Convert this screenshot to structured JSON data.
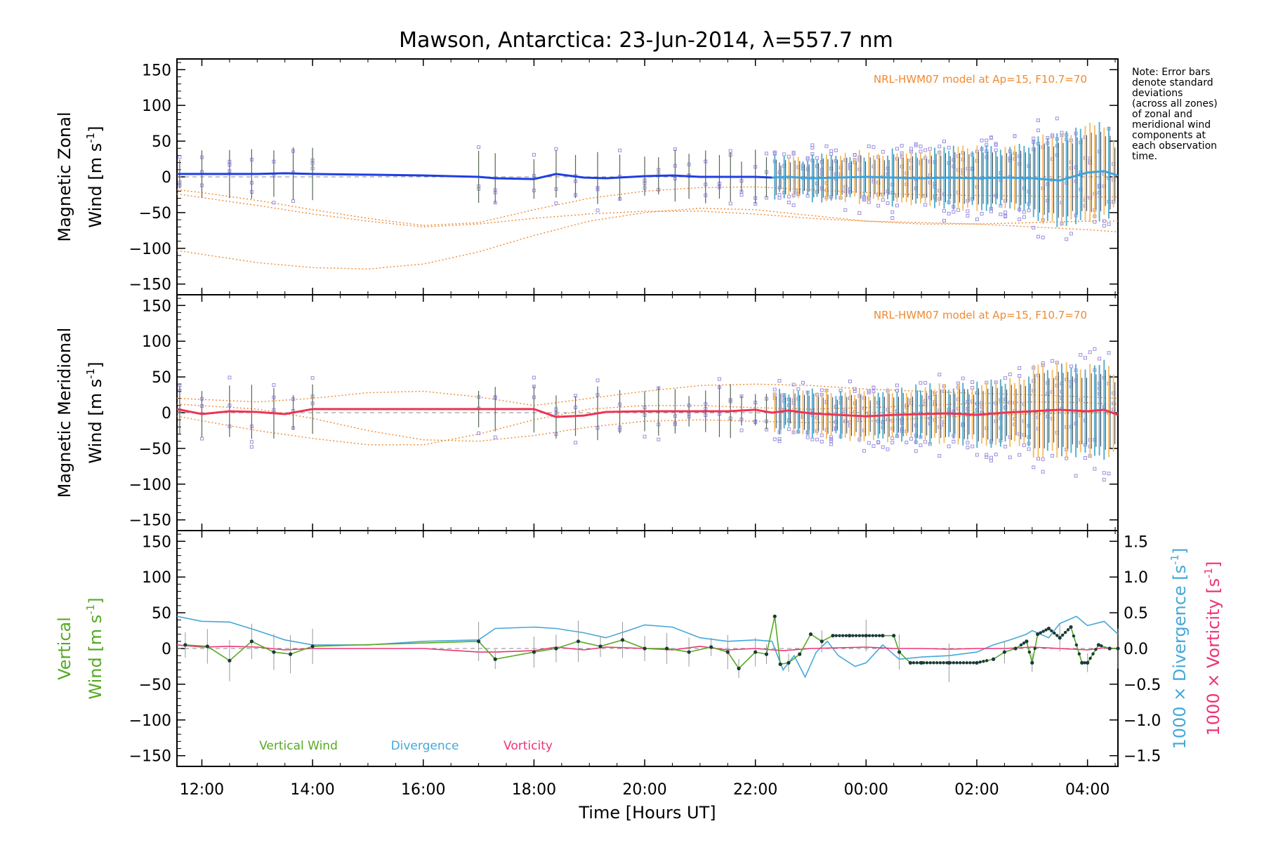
{
  "title": "Mawson, Antarctica: 23-Jun-2014, λ=557.7 nm",
  "note": [
    "Note: Error bars",
    "denote standard",
    "deviations",
    "(across all zones)",
    "of zonal and",
    "meridional wind",
    "components at",
    "each observation",
    "time."
  ],
  "x_axis": {
    "label": "Time [Hours UT]",
    "range_hours_since_midnight_23jun": [
      11.55,
      28.55
    ],
    "ticks": [
      {
        "value": 12,
        "label": "12:00"
      },
      {
        "value": 14,
        "label": "14:00"
      },
      {
        "value": 16,
        "label": "16:00"
      },
      {
        "value": 18,
        "label": "18:00"
      },
      {
        "value": 20,
        "label": "20:00"
      },
      {
        "value": 22,
        "label": "22:00"
      },
      {
        "value": 24,
        "label": "00:00"
      },
      {
        "value": 26,
        "label": "02:00"
      },
      {
        "value": 28,
        "label": "04:00"
      }
    ]
  },
  "colors": {
    "zonal": "#1f3fe0",
    "zonal_late": "#39a4e0",
    "meridional": "#ee3355",
    "model": "#f08a30",
    "scatter": "#9a8fe0",
    "vertical": "#55aa22",
    "divergence": "#45a8d8",
    "vorticity": "#ee3377",
    "errorbar": "#556655"
  },
  "chart_data": [
    {
      "type": "line",
      "panel": "zonal",
      "ylabel_line1": "Magnetic Zonal",
      "ylabel_line2": "Wind [m s",
      "ylabel_sup": "-1",
      "ylabel_tail": "]",
      "ylim": [
        -165,
        165
      ],
      "yticks": [
        -150,
        -100,
        -50,
        0,
        50,
        100,
        150
      ],
      "model_label": "NRL-HWM07 model at Ap=15, F10.7=70",
      "series": [
        {
          "name": "zonal wind",
          "x": [
            11.55,
            12.0,
            12.5,
            13.0,
            13.5,
            14.0,
            15.0,
            16.0,
            17.0,
            17.3,
            18.0,
            18.4,
            18.9,
            19.3,
            20.0,
            20.5,
            21.0,
            21.5,
            22.0,
            22.3
          ],
          "y": [
            4,
            4,
            4,
            4,
            5,
            4,
            3,
            2,
            0,
            -2,
            -3,
            4,
            -1,
            -2,
            1,
            2,
            0,
            0,
            0,
            -1
          ]
        },
        {
          "name": "zonal wind (late)",
          "x": [
            22.3,
            22.6,
            23.0,
            23.5,
            24.0,
            24.5,
            25.0,
            25.5,
            26.0,
            26.5,
            27.0,
            27.5,
            28.0,
            28.3,
            28.55
          ],
          "y": [
            -1,
            0,
            -2,
            -1,
            0,
            -1,
            -2,
            -1,
            -2,
            -1,
            -2,
            -5,
            6,
            8,
            2
          ]
        },
        {
          "name": "model 1",
          "x": [
            11.55,
            13,
            14,
            15,
            16,
            17,
            18,
            19,
            20,
            21,
            22,
            23,
            24,
            25,
            26,
            27,
            28,
            28.55
          ],
          "y": [
            -24,
            -40,
            -52,
            -62,
            -70,
            -66,
            -58,
            -52,
            -48,
            -48,
            -52,
            -58,
            -62,
            -64,
            -66,
            -70,
            -74,
            -77
          ]
        },
        {
          "name": "model 2",
          "x": [
            11.55,
            13,
            14,
            15,
            16,
            17,
            18,
            19,
            20,
            21,
            22,
            23,
            24,
            25,
            26,
            27,
            28,
            28.55
          ],
          "y": [
            -103,
            -120,
            -127,
            -129,
            -122,
            -105,
            -82,
            -62,
            -50,
            -44,
            -46,
            -54,
            -62,
            -66,
            -66,
            -64,
            -62,
            -62
          ]
        },
        {
          "name": "model 3",
          "x": [
            11.55,
            12,
            13,
            14,
            15,
            16,
            17,
            18,
            19,
            20,
            21,
            22,
            23,
            24,
            25,
            26,
            27,
            28,
            28.55
          ],
          "y": [
            -18,
            -22,
            -33,
            -46,
            -58,
            -68,
            -64,
            -46,
            -30,
            -20,
            -15,
            -14,
            -18,
            -22,
            -25,
            -26,
            -27,
            -28,
            -28
          ]
        }
      ]
    },
    {
      "type": "line",
      "panel": "meridional",
      "ylabel_line1": "Magnetic Meridional",
      "ylabel_line2": "Wind [m s",
      "ylabel_sup": "-1",
      "ylabel_tail": "]",
      "ylim": [
        -165,
        165
      ],
      "yticks": [
        -150,
        -100,
        -50,
        0,
        50,
        100,
        150
      ],
      "model_label": "NRL-HWM07 model at Ap=15, F10.7=70",
      "series": [
        {
          "name": "meridional wind",
          "x": [
            11.55,
            12.0,
            12.5,
            13.0,
            13.5,
            14.0,
            15.0,
            16.0,
            17.0,
            17.3,
            18.0,
            18.4,
            18.9,
            19.3,
            20.0,
            20.5,
            21.0,
            21.5,
            22.0,
            22.3,
            22.6,
            23.0,
            23.5,
            24.0,
            24.5,
            25.0,
            25.5,
            26.0,
            26.5,
            27.0,
            27.5,
            28.0,
            28.3,
            28.55
          ],
          "y": [
            5,
            -2,
            2,
            1,
            -2,
            5,
            5,
            5,
            5,
            5,
            5,
            -6,
            -4,
            1,
            2,
            2,
            2,
            2,
            4,
            0,
            3,
            -1,
            -3,
            -5,
            -3,
            -2,
            -1,
            -3,
            0,
            2,
            4,
            2,
            4,
            -3
          ]
        },
        {
          "name": "model 1",
          "x": [
            11.55,
            13,
            14,
            15,
            16,
            17,
            18,
            19,
            20,
            21,
            22,
            23,
            24,
            25,
            26,
            27,
            28,
            28.55
          ],
          "y": [
            20,
            15,
            20,
            28,
            30,
            22,
            10,
            20,
            30,
            38,
            40,
            38,
            33,
            30,
            27,
            25,
            22,
            20
          ]
        },
        {
          "name": "model 2",
          "x": [
            11.55,
            13,
            14,
            15,
            16,
            17,
            18,
            19,
            20,
            21,
            22,
            23,
            24,
            25,
            26,
            27,
            28,
            28.55
          ],
          "y": [
            12,
            5,
            -8,
            -25,
            -38,
            -40,
            -32,
            -20,
            -12,
            -10,
            -12,
            -14,
            -12,
            -8,
            -4,
            -2,
            0,
            0
          ]
        },
        {
          "name": "model 3",
          "x": [
            11.55,
            13,
            14,
            15,
            16,
            17,
            18,
            19,
            20,
            21,
            22,
            23,
            24,
            25,
            26,
            27,
            28,
            28.55
          ],
          "y": [
            -5,
            -25,
            -36,
            -45,
            -45,
            -30,
            -10,
            5,
            10,
            10,
            7,
            5,
            7,
            10,
            13,
            15,
            14,
            12
          ]
        }
      ]
    },
    {
      "type": "line",
      "panel": "vertical",
      "ylabel_line1": "Vertical",
      "ylabel_line2": "Wind [m s",
      "ylabel_sup": "-1",
      "ylabel_tail": "]",
      "ylim": [
        -165,
        165
      ],
      "yticks": [
        -150,
        -100,
        -50,
        0,
        50,
        100,
        150
      ],
      "y2lim": [
        -1.65,
        1.65
      ],
      "y2ticks": [
        -1.5,
        -1.0,
        -0.5,
        0.0,
        0.5,
        1.0,
        1.5
      ],
      "y2tick_labels": [
        "−1.5",
        "−1.0",
        "−0.5",
        "0.0",
        "0.5",
        "1.0",
        "1.5"
      ],
      "y2label_div": "1000 × Divergence [s",
      "y2label_vor": "1000 × Vorticity [s",
      "y2label_sup": "-1",
      "y2label_tail": "]",
      "legend": [
        "Vertical Wind",
        "Divergence",
        "Vorticity"
      ],
      "series": [
        {
          "name": "Vertical Wind",
          "x": [
            11.7,
            12.1,
            12.5,
            12.9,
            13.3,
            13.6,
            14.0,
            17.0,
            17.3,
            18.0,
            18.4,
            18.8,
            19.2,
            19.6,
            20.0,
            20.4,
            20.8,
            21.2,
            21.5,
            21.7,
            22.0,
            22.2,
            22.35,
            22.45,
            22.6,
            22.8,
            23.0,
            23.2,
            23.4,
            23.7,
            24.0,
            24.3,
            24.5,
            24.6,
            24.8,
            25.0,
            25.5,
            26.0,
            26.3,
            26.5,
            26.7,
            26.9,
            27.0,
            27.1,
            27.3,
            27.5,
            27.7,
            27.9,
            28.0,
            28.2,
            28.4,
            28.55
          ],
          "y": [
            5,
            3,
            -17,
            10,
            -5,
            -8,
            3,
            10,
            -15,
            -5,
            0,
            10,
            3,
            12,
            0,
            0,
            -5,
            2,
            -5,
            -28,
            -5,
            -8,
            45,
            -22,
            -20,
            -8,
            20,
            10,
            18,
            18,
            18,
            18,
            18,
            -5,
            -20,
            -20,
            -20,
            -20,
            -15,
            -5,
            0,
            10,
            -20,
            20,
            28,
            15,
            30,
            -20,
            -20,
            5,
            0,
            0
          ]
        },
        {
          "name": "Divergence",
          "x": [
            11.55,
            12.0,
            12.5,
            13.0,
            13.5,
            14.0,
            15.0,
            16.0,
            17.0,
            17.3,
            18.0,
            18.4,
            18.9,
            19.3,
            19.7,
            20.0,
            20.5,
            21.0,
            21.5,
            22.0,
            22.3,
            22.5,
            22.7,
            22.9,
            23.1,
            23.3,
            23.5,
            23.8,
            24.0,
            24.3,
            24.6,
            25.0,
            25.5,
            26.0,
            26.3,
            26.6,
            26.9,
            27.0,
            27.3,
            27.5,
            27.8,
            28.0,
            28.3,
            28.55
          ],
          "y": [
            0.45,
            0.38,
            0.37,
            0.25,
            0.12,
            0.05,
            0.05,
            0.1,
            0.12,
            0.28,
            0.3,
            0.28,
            0.22,
            0.15,
            0.25,
            0.33,
            0.3,
            0.15,
            0.1,
            0.12,
            0.1,
            -0.3,
            -0.1,
            -0.4,
            -0.05,
            0.1,
            -0.1,
            -0.25,
            -0.2,
            0.05,
            -0.15,
            -0.12,
            -0.1,
            -0.05,
            0.05,
            0.12,
            0.2,
            0.25,
            0.15,
            0.35,
            0.45,
            0.32,
            0.38,
            0.2
          ]
        },
        {
          "name": "Vorticity",
          "x": [
            11.55,
            12.0,
            12.5,
            13.0,
            13.5,
            14.0,
            15.0,
            16.0,
            17.0,
            17.3,
            18.0,
            18.4,
            18.9,
            19.3,
            20.0,
            20.5,
            21.0,
            21.5,
            22.0,
            22.5,
            23.0,
            23.5,
            24.0,
            24.5,
            25.0,
            25.5,
            26.0,
            26.5,
            27.0,
            27.5,
            28.0,
            28.3,
            28.55
          ],
          "y": [
            0.05,
            0.02,
            0.03,
            0.02,
            -0.02,
            0.0,
            0.0,
            0.0,
            -0.05,
            -0.05,
            -0.03,
            0.02,
            -0.02,
            0.02,
            0.0,
            -0.02,
            0.03,
            -0.02,
            0.0,
            -0.03,
            0.0,
            0.01,
            0.02,
            0.0,
            0.0,
            -0.01,
            0.0,
            0.0,
            0.02,
            0.0,
            -0.02,
            0.01,
            0.0
          ]
        }
      ]
    }
  ]
}
